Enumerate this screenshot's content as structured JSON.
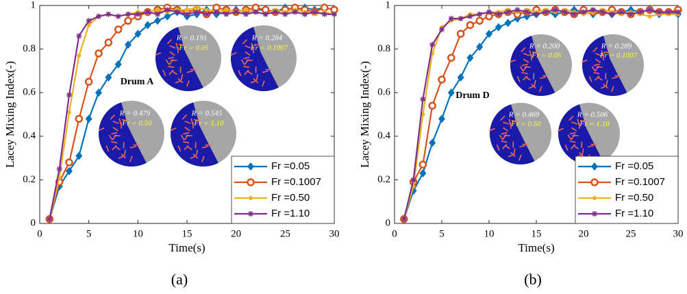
{
  "chart_data": [
    {
      "type": "line",
      "xlabel": "Time(s)",
      "ylabel": "Lacey Mixing Index(-)",
      "caption": "(a)",
      "drum_label": "Drum A",
      "x": [
        1,
        2,
        3,
        4,
        5,
        6,
        7,
        8,
        9,
        10,
        11,
        12,
        13,
        14,
        15,
        16,
        17,
        18,
        19,
        20,
        21,
        22,
        23,
        24,
        25,
        26,
        27,
        28,
        29,
        30
      ],
      "xlim": [
        0,
        30
      ],
      "xticks": [
        0,
        5,
        10,
        15,
        20,
        25,
        30
      ],
      "ylim": [
        0,
        1
      ],
      "yticks": [
        0,
        0.2,
        0.4,
        0.6,
        0.8,
        1
      ],
      "legend": "lower right",
      "series": [
        {
          "name": "Fr =0.05",
          "color": "#0072BD",
          "marker": "diamond",
          "values": [
            0.02,
            0.17,
            0.24,
            0.31,
            0.48,
            0.6,
            0.67,
            0.73,
            0.82,
            0.87,
            0.91,
            0.93,
            0.95,
            0.97,
            0.95,
            0.96,
            0.98,
            0.96,
            0.97,
            0.98,
            0.97,
            0.98,
            0.98,
            0.97,
            0.99,
            0.98,
            0.99,
            0.98,
            0.99,
            0.98
          ]
        },
        {
          "name": "Fr =0.1007",
          "color": "#D95319",
          "marker": "circle",
          "values": [
            0.02,
            0.19,
            0.28,
            0.48,
            0.65,
            0.78,
            0.83,
            0.89,
            0.93,
            0.95,
            0.97,
            0.98,
            0.99,
            0.98,
            0.97,
            0.98,
            0.96,
            0.99,
            0.98,
            0.97,
            0.98,
            0.99,
            0.98,
            0.97,
            0.98,
            0.99,
            0.98,
            0.97,
            0.99,
            0.98
          ]
        },
        {
          "name": "Fr =0.50",
          "color": "#EDB120",
          "marker": "dot",
          "values": [
            0.02,
            0.21,
            0.51,
            0.77,
            0.91,
            0.95,
            0.96,
            0.95,
            0.96,
            0.97,
            0.97,
            0.98,
            0.97,
            0.98,
            0.98,
            0.99,
            0.98,
            0.97,
            0.98,
            0.97,
            0.98,
            0.97,
            0.96,
            0.98,
            0.97,
            0.98,
            0.97,
            0.96,
            0.97,
            0.96
          ]
        },
        {
          "name": "Fr =1.10",
          "color": "#7E2F8E",
          "marker": "star",
          "values": [
            0.02,
            0.25,
            0.59,
            0.86,
            0.93,
            0.95,
            0.96,
            0.95,
            0.96,
            0.96,
            0.97,
            0.96,
            0.98,
            0.97,
            0.96,
            0.97,
            0.96,
            0.97,
            0.96,
            0.97,
            0.96,
            0.97,
            0.96,
            0.97,
            0.96,
            0.97,
            0.96,
            0.97,
            0.96,
            0.96
          ]
        }
      ],
      "insets": [
        {
          "r": "R = 0.191",
          "fr": "Fr = 0.05"
        },
        {
          "r": "R = 0.284",
          "fr": "Fr = 0.1007"
        },
        {
          "r": "R = 0.479",
          "fr": "Fr = 0.50"
        },
        {
          "r": "R = 0.545",
          "fr": "Fr = 1.10"
        }
      ]
    },
    {
      "type": "line",
      "xlabel": "Time(s)",
      "ylabel": "Lacey Mixing Index(-)",
      "caption": "(b)",
      "drum_label": "Drum D",
      "x": [
        1,
        2,
        3,
        4,
        5,
        6,
        7,
        8,
        9,
        10,
        11,
        12,
        13,
        14,
        15,
        16,
        17,
        18,
        19,
        20,
        21,
        22,
        23,
        24,
        25,
        26,
        27,
        28,
        29,
        30
      ],
      "xlim": [
        0,
        30
      ],
      "xticks": [
        0,
        5,
        10,
        15,
        20,
        25,
        30
      ],
      "ylim": [
        0,
        1
      ],
      "yticks": [
        0,
        0.2,
        0.4,
        0.6,
        0.8,
        1
      ],
      "legend": "lower right",
      "series": [
        {
          "name": "Fr =0.05",
          "color": "#0072BD",
          "marker": "diamond",
          "values": [
            0.02,
            0.15,
            0.23,
            0.37,
            0.48,
            0.6,
            0.67,
            0.76,
            0.81,
            0.87,
            0.9,
            0.92,
            0.94,
            0.95,
            0.96,
            0.97,
            0.96,
            0.97,
            0.98,
            0.97,
            0.96,
            0.97,
            0.96,
            0.97,
            0.98,
            0.97,
            0.98,
            0.96,
            0.97,
            0.96
          ]
        },
        {
          "name": "Fr =0.1007",
          "color": "#D95319",
          "marker": "circle",
          "values": [
            0.02,
            0.19,
            0.27,
            0.54,
            0.66,
            0.76,
            0.87,
            0.91,
            0.93,
            0.95,
            0.96,
            0.97,
            0.96,
            0.97,
            0.98,
            0.97,
            0.98,
            0.97,
            0.96,
            0.98,
            0.97,
            0.97,
            0.98,
            0.97,
            0.96,
            0.97,
            0.98,
            0.97,
            0.97,
            0.98
          ]
        },
        {
          "name": "Fr =0.50",
          "color": "#EDB120",
          "marker": "dot",
          "values": [
            0.02,
            0.17,
            0.5,
            0.78,
            0.9,
            0.93,
            0.94,
            0.96,
            0.96,
            0.97,
            0.97,
            0.98,
            0.97,
            0.98,
            0.97,
            0.98,
            0.97,
            0.98,
            0.97,
            0.96,
            0.97,
            0.98,
            0.97,
            0.96,
            0.97,
            0.96,
            0.95,
            0.96,
            0.96,
            0.96
          ]
        },
        {
          "name": "Fr =1.10",
          "color": "#7E2F8E",
          "marker": "star",
          "values": [
            0.02,
            0.2,
            0.57,
            0.82,
            0.89,
            0.94,
            0.94,
            0.95,
            0.96,
            0.97,
            0.96,
            0.97,
            0.98,
            0.97,
            0.96,
            0.97,
            0.98,
            0.97,
            0.96,
            0.97,
            0.98,
            0.97,
            0.96,
            0.97,
            0.96,
            0.97,
            0.98,
            0.97,
            0.97,
            0.97
          ]
        }
      ],
      "insets": [
        {
          "r": "R = 0.200",
          "fr": "Fr = 0.05"
        },
        {
          "r": "R = 0.289",
          "fr": "Fr = 0.1007"
        },
        {
          "r": "R = 0.469",
          "fr": "Fr = 0.50"
        },
        {
          "r": "R = 0.506",
          "fr": "Fr = 1.10"
        }
      ]
    }
  ]
}
